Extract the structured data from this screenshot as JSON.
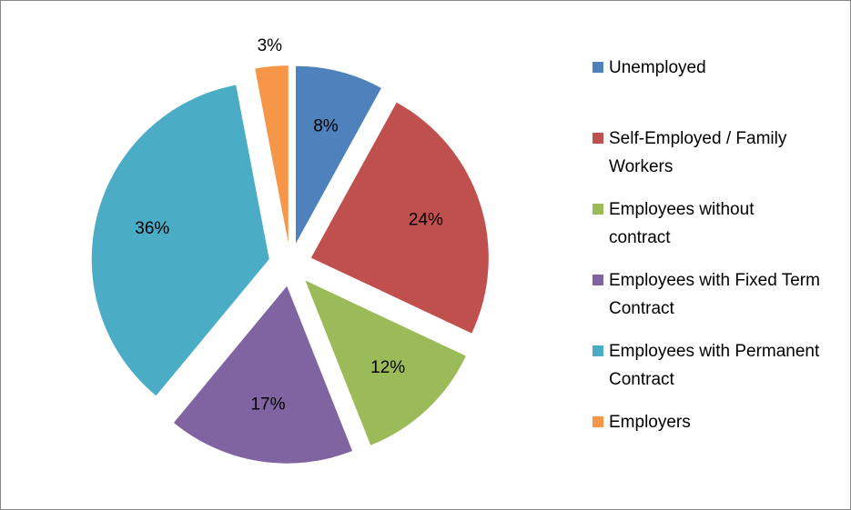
{
  "chart_data": {
    "type": "pie",
    "categories": [
      "Unemployed",
      "Self-Employed / Family Workers",
      "Employees without contract",
      "Employees with Fixed Term Contract",
      "Employees with Permanent Contract",
      "Employers"
    ],
    "values": [
      8,
      24,
      12,
      17,
      36,
      3
    ],
    "value_labels": [
      "8%",
      "24%",
      "12%",
      "17%",
      "36%",
      "3%"
    ],
    "colors": [
      "#4f81bd",
      "#c0504d",
      "#9bbb59",
      "#8064a2",
      "#4bacc6",
      "#f79646"
    ],
    "legend": "right"
  }
}
